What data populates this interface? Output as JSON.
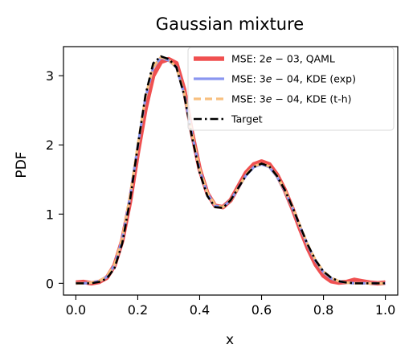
{
  "chart_data": {
    "type": "line",
    "title": "Gaussian mixture",
    "xlabel": "x",
    "ylabel": "PDF",
    "xlim": [
      -0.04,
      1.04
    ],
    "ylim": [
      -0.17,
      3.42
    ],
    "x_ticks": [
      0.0,
      0.2,
      0.4,
      0.6,
      0.8,
      1.0
    ],
    "x_tick_labels": [
      "0.0",
      "0.2",
      "0.4",
      "0.6",
      "0.8",
      "1.0"
    ],
    "y_ticks": [
      0,
      1,
      2,
      3
    ],
    "y_tick_labels": [
      "0",
      "1",
      "2",
      "3"
    ],
    "grid": false,
    "legend_position": "top-right",
    "x": [
      0.0,
      0.025,
      0.05,
      0.075,
      0.1,
      0.125,
      0.15,
      0.175,
      0.2,
      0.225,
      0.25,
      0.275,
      0.3,
      0.325,
      0.35,
      0.375,
      0.4,
      0.425,
      0.45,
      0.475,
      0.5,
      0.525,
      0.55,
      0.575,
      0.6,
      0.625,
      0.65,
      0.675,
      0.7,
      0.725,
      0.75,
      0.775,
      0.8,
      0.825,
      0.85,
      0.875,
      0.9,
      0.925,
      0.95,
      0.975,
      1.0
    ],
    "series": [
      {
        "name": "MSE: 2e − 03, QAML",
        "label_prefix": "MSE: 2",
        "label_exp": "e",
        "label_suffix": " − 03, QAML",
        "color": "#f05050",
        "style": "solid",
        "values": [
          0.01,
          0.02,
          0.0,
          0.02,
          0.08,
          0.26,
          0.62,
          1.18,
          1.88,
          2.52,
          3.0,
          3.2,
          3.24,
          3.18,
          2.8,
          2.18,
          1.65,
          1.3,
          1.12,
          1.1,
          1.2,
          1.4,
          1.6,
          1.72,
          1.76,
          1.72,
          1.57,
          1.35,
          1.08,
          0.78,
          0.5,
          0.27,
          0.11,
          0.03,
          0.01,
          0.02,
          0.05,
          0.03,
          0.01,
          0.0,
          0.01
        ]
      },
      {
        "name": "MSE: 3e − 04, KDE (exp)",
        "label_prefix": "MSE: 3",
        "label_exp": "e",
        "label_suffix": " − 04, KDE (exp)",
        "color": "#8a96f0",
        "style": "solid",
        "values": [
          0.0,
          0.0,
          0.01,
          0.03,
          0.09,
          0.26,
          0.64,
          1.24,
          1.98,
          2.68,
          3.12,
          3.26,
          3.22,
          3.12,
          2.74,
          2.16,
          1.64,
          1.3,
          1.12,
          1.1,
          1.2,
          1.38,
          1.56,
          1.68,
          1.72,
          1.68,
          1.54,
          1.34,
          1.09,
          0.81,
          0.54,
          0.32,
          0.16,
          0.07,
          0.03,
          0.01,
          0.0,
          0.0,
          0.0,
          0.0,
          0.0
        ]
      },
      {
        "name": "MSE: 3e − 04, KDE (t-h)",
        "label_prefix": "MSE: 3",
        "label_exp": "e",
        "label_suffix": " − 04, KDE (t-h)",
        "color": "#f8c080",
        "style": "dashed",
        "values": [
          0.0,
          0.0,
          0.01,
          0.03,
          0.1,
          0.27,
          0.65,
          1.25,
          1.99,
          2.69,
          3.13,
          3.27,
          3.23,
          3.12,
          2.75,
          2.17,
          1.65,
          1.31,
          1.13,
          1.1,
          1.2,
          1.38,
          1.57,
          1.69,
          1.73,
          1.69,
          1.55,
          1.35,
          1.1,
          0.82,
          0.55,
          0.33,
          0.17,
          0.08,
          0.03,
          0.01,
          0.0,
          0.0,
          0.0,
          0.0,
          0.0
        ]
      },
      {
        "name": "Target",
        "label_prefix": "Target",
        "label_exp": "",
        "label_suffix": "",
        "color": "#000000",
        "style": "dashdot",
        "values": [
          0.0,
          0.0,
          0.0,
          0.02,
          0.07,
          0.22,
          0.58,
          1.2,
          1.98,
          2.72,
          3.18,
          3.28,
          3.24,
          3.12,
          2.72,
          2.12,
          1.6,
          1.26,
          1.1,
          1.09,
          1.2,
          1.38,
          1.56,
          1.68,
          1.73,
          1.69,
          1.55,
          1.35,
          1.1,
          0.82,
          0.55,
          0.33,
          0.17,
          0.08,
          0.03,
          0.01,
          0.0,
          0.0,
          0.0,
          0.0,
          0.0
        ]
      }
    ]
  }
}
